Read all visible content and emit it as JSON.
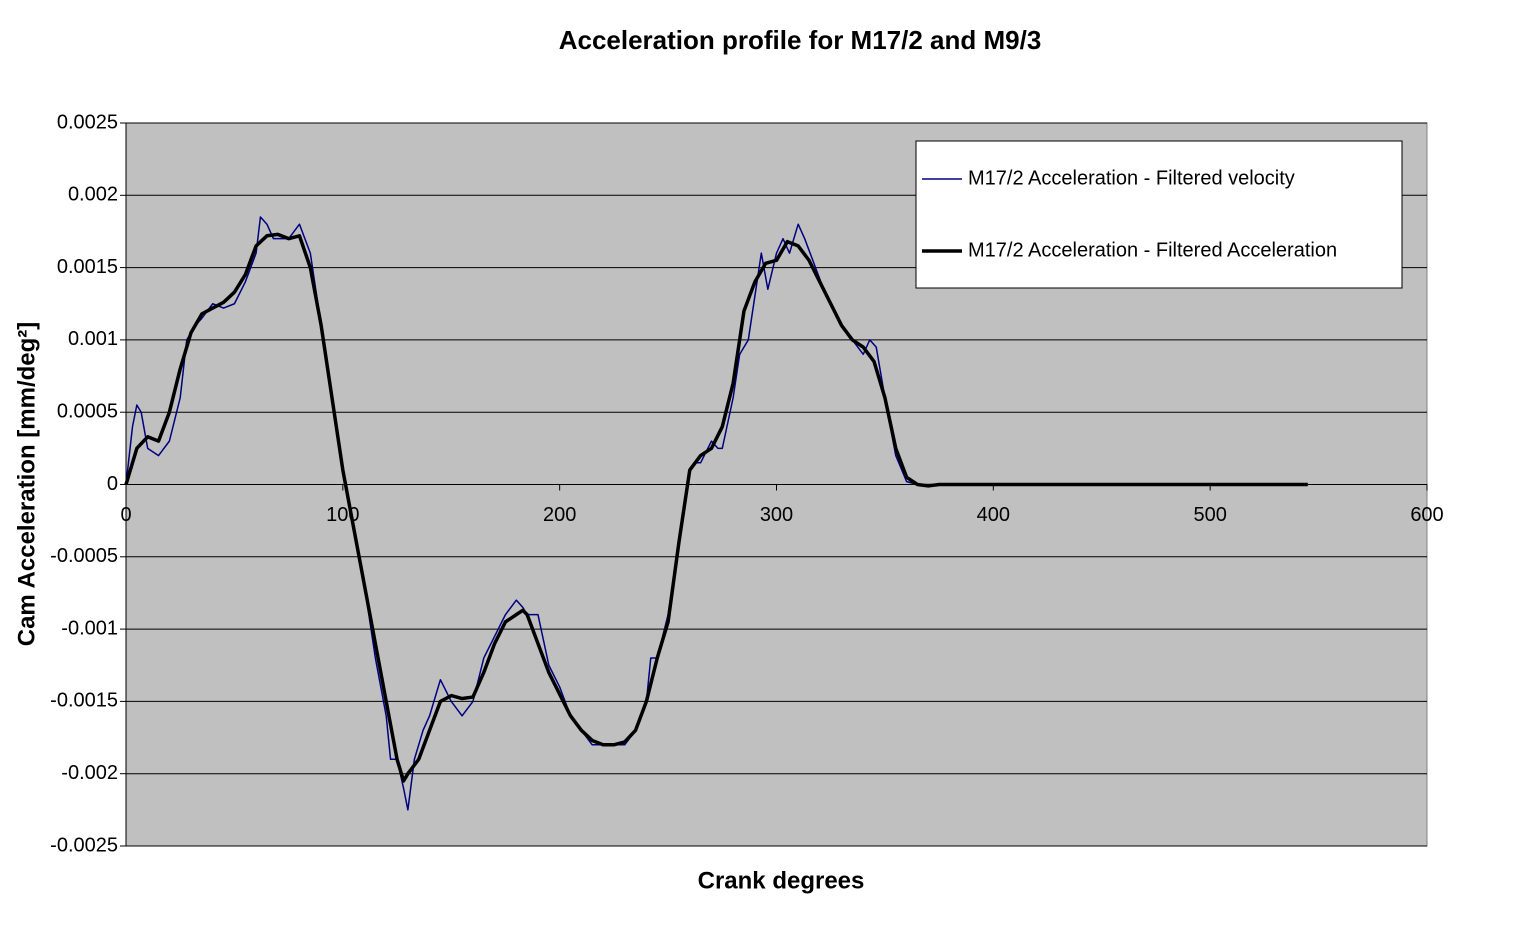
{
  "chart_data": {
    "type": "line",
    "title": "Acceleration profile  for  M17/2  and  M9/3",
    "xlabel": "Crank degrees",
    "ylabel": "Cam Acceleration [mm/deg²]",
    "xlim": [
      0,
      600
    ],
    "xticks": [
      0,
      100,
      200,
      300,
      400,
      500,
      600
    ],
    "ylim": [
      -0.0025,
      0.0025
    ],
    "yticks": [
      -0.0025,
      -0.002,
      -0.0015,
      -0.001,
      -0.0005,
      0,
      0.0005,
      0.001,
      0.0015,
      0.002,
      0.0025
    ],
    "grid": true,
    "legend": "upper right",
    "background": "#c0c0c0",
    "series": [
      {
        "name": "M17/2 Acceleration - Filtered velocity",
        "color": "#000080",
        "width": 1.5,
        "x": [
          0,
          3,
          5,
          7,
          10,
          15,
          20,
          25,
          28,
          32,
          35,
          40,
          45,
          50,
          55,
          60,
          62,
          65,
          68,
          72,
          75,
          80,
          85,
          90,
          95,
          100,
          105,
          110,
          115,
          120,
          122,
          125,
          128,
          130,
          133,
          137,
          140,
          145,
          150,
          155,
          160,
          165,
          170,
          175,
          180,
          183,
          185,
          190,
          195,
          200,
          205,
          210,
          215,
          220,
          225,
          230,
          235,
          240,
          242,
          245,
          250,
          255,
          260,
          262,
          265,
          270,
          273,
          275,
          280,
          283,
          287,
          290,
          293,
          296,
          300,
          303,
          306,
          310,
          313,
          318,
          323,
          330,
          335,
          340,
          343,
          346,
          350,
          355,
          360,
          365,
          545
        ],
        "values": [
          0,
          0.0004,
          0.00055,
          0.0005,
          0.00025,
          0.0002,
          0.0003,
          0.0006,
          0.001,
          0.0011,
          0.00115,
          0.00125,
          0.00122,
          0.00125,
          0.0014,
          0.0016,
          0.00185,
          0.0018,
          0.0017,
          0.0017,
          0.0017,
          0.0018,
          0.0016,
          0.0011,
          0.0006,
          0.0001,
          -0.0003,
          -0.0007,
          -0.0012,
          -0.0016,
          -0.0019,
          -0.0019,
          -0.0021,
          -0.00225,
          -0.0019,
          -0.0017,
          -0.0016,
          -0.00135,
          -0.0015,
          -0.0016,
          -0.0015,
          -0.0012,
          -0.00105,
          -0.0009,
          -0.0008,
          -0.00085,
          -0.0009,
          -0.0009,
          -0.00125,
          -0.0014,
          -0.0016,
          -0.0017,
          -0.0018,
          -0.0018,
          -0.0018,
          -0.0018,
          -0.0017,
          -0.0015,
          -0.0012,
          -0.0012,
          -0.0009,
          -0.0004,
          0.0001,
          0.00015,
          0.00015,
          0.0003,
          0.00025,
          0.00025,
          0.0006,
          0.0009,
          0.001,
          0.0013,
          0.0016,
          0.00135,
          0.0016,
          0.0017,
          0.0016,
          0.0018,
          0.0017,
          0.0015,
          0.0013,
          0.0011,
          0.001,
          0.0009,
          0.001,
          0.00095,
          0.0006,
          0.0002,
          2e-05,
          0,
          0
        ]
      },
      {
        "name": "M17/2 Acceleration -  Filtered Acceleration",
        "color": "#000000",
        "width": 3.5,
        "x": [
          0,
          5,
          10,
          15,
          20,
          25,
          30,
          35,
          40,
          45,
          50,
          55,
          60,
          65,
          70,
          75,
          80,
          85,
          90,
          95,
          100,
          105,
          110,
          115,
          120,
          125,
          128,
          130,
          135,
          140,
          145,
          150,
          155,
          160,
          165,
          170,
          175,
          180,
          183,
          185,
          190,
          195,
          200,
          205,
          210,
          215,
          220,
          225,
          230,
          235,
          240,
          245,
          250,
          255,
          260,
          265,
          270,
          275,
          280,
          285,
          290,
          295,
          300,
          305,
          310,
          315,
          320,
          325,
          330,
          335,
          340,
          345,
          350,
          355,
          360,
          365,
          370,
          375,
          545
        ],
        "values": [
          0,
          0.00025,
          0.00033,
          0.0003,
          0.0005,
          0.0008,
          0.00105,
          0.00118,
          0.00122,
          0.00126,
          0.00133,
          0.00145,
          0.00165,
          0.00172,
          0.00173,
          0.0017,
          0.00172,
          0.0015,
          0.0011,
          0.0006,
          0.0001,
          -0.0003,
          -0.0007,
          -0.0011,
          -0.0015,
          -0.0019,
          -0.00205,
          -0.002,
          -0.0019,
          -0.0017,
          -0.0015,
          -0.00146,
          -0.00148,
          -0.00147,
          -0.0013,
          -0.0011,
          -0.00095,
          -0.0009,
          -0.00087,
          -0.0009,
          -0.0011,
          -0.0013,
          -0.00145,
          -0.0016,
          -0.0017,
          -0.00177,
          -0.0018,
          -0.0018,
          -0.00178,
          -0.0017,
          -0.0015,
          -0.0012,
          -0.00095,
          -0.0004,
          0.0001,
          0.0002,
          0.00025,
          0.0004,
          0.0007,
          0.0012,
          0.0014,
          0.00153,
          0.00155,
          0.00168,
          0.00165,
          0.00155,
          0.0014,
          0.00125,
          0.0011,
          0.001,
          0.00095,
          0.00085,
          0.0006,
          0.00025,
          5e-05,
          0,
          -1e-05,
          0,
          0
        ]
      }
    ]
  }
}
